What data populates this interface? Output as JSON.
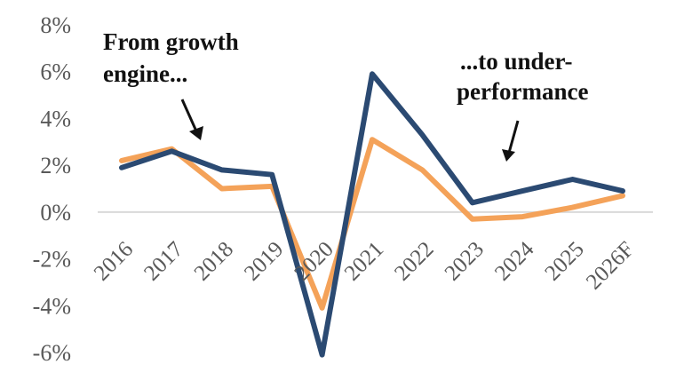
{
  "chart_data": {
    "type": "line",
    "categories": [
      "2016",
      "2017",
      "2018",
      "2019",
      "2020",
      "2021",
      "2022",
      "2023",
      "2024",
      "2025",
      "2026F"
    ],
    "series": [
      {
        "color": "#f4a259",
        "values": [
          2.2,
          2.7,
          1.0,
          1.1,
          -4.1,
          3.1,
          1.8,
          -0.3,
          -0.2,
          0.2,
          0.7
        ]
      },
      {
        "color": "#2b4a72",
        "values": [
          1.9,
          2.6,
          1.8,
          1.6,
          -6.1,
          5.9,
          3.3,
          0.4,
          0.9,
          1.4,
          0.9
        ]
      }
    ],
    "yticks": [
      "8%",
      "6%",
      "4%",
      "2%",
      "0%",
      "-2%",
      "-4%",
      "-6%"
    ],
    "ytick_values": [
      8,
      6,
      4,
      2,
      0,
      -2,
      -4,
      -6
    ],
    "ylim": [
      -6,
      8
    ],
    "grid": false,
    "title": "",
    "xlabel": "",
    "ylabel": "",
    "annotations": [
      {
        "lines": [
          "From growth",
          "engine..."
        ]
      },
      {
        "lines": [
          "...to under-",
          "performance"
        ]
      }
    ]
  }
}
